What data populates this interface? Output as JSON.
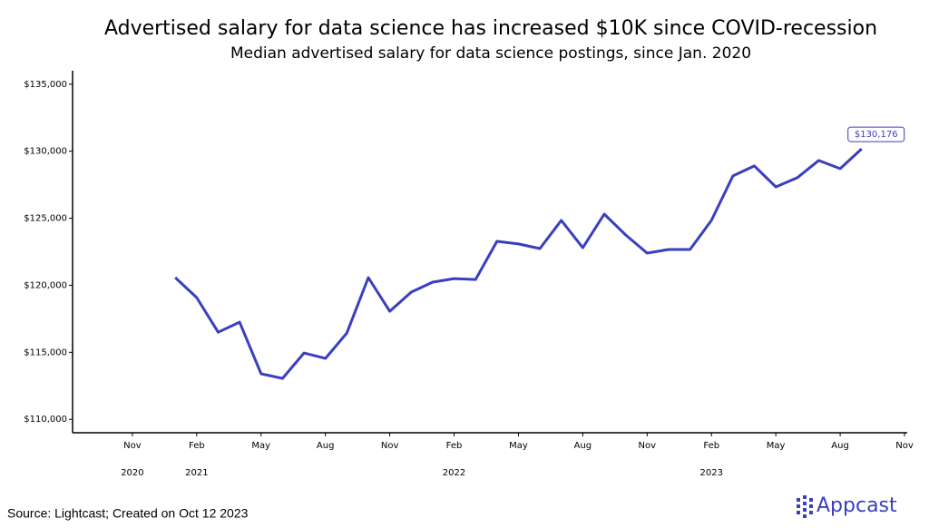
{
  "chart_data": {
    "type": "line",
    "title": "Advertised salary for data science has increased $10K since COVID-recession",
    "subtitle": "Median advertised salary for data science postings, since Jan. 2020",
    "source": "Source: Lightcast; Created on Oct 12 2023",
    "brand": "Appcast",
    "x": [
      "2021-01",
      "2021-02",
      "2021-03",
      "2021-04",
      "2021-05",
      "2021-06",
      "2021-07",
      "2021-08",
      "2021-09",
      "2021-10",
      "2021-11",
      "2021-12",
      "2022-01",
      "2022-02",
      "2022-03",
      "2022-04",
      "2022-05",
      "2022-06",
      "2022-07",
      "2022-08",
      "2022-09",
      "2022-10",
      "2022-11",
      "2022-12",
      "2023-01",
      "2023-02",
      "2023-03",
      "2023-04",
      "2023-05",
      "2023-06",
      "2023-07",
      "2023-08",
      "2023-09"
    ],
    "series": [
      {
        "color": "#3a3fbf",
        "values": [
          120570,
          119080,
          116500,
          117250,
          113400,
          113050,
          114950,
          114540,
          116440,
          120570,
          118060,
          119490,
          120230,
          120500,
          120430,
          123280,
          123080,
          122740,
          124840,
          122800,
          125310,
          123750,
          122400,
          122670,
          122670,
          124840,
          128160,
          128900,
          127340,
          128020,
          129310,
          128700,
          130176
        ],
        "value_labels": [
          null,
          null,
          null,
          null,
          null,
          null,
          null,
          null,
          null,
          null,
          null,
          null,
          null,
          null,
          null,
          null,
          null,
          null,
          null,
          null,
          null,
          null,
          null,
          null,
          null,
          null,
          null,
          null,
          null,
          null,
          null,
          null,
          "$130,176"
        ]
      }
    ],
    "xlim": [
      "2020-08",
      "2023-11"
    ],
    "xticks": [
      {
        "value": "2020-11",
        "label": "Nov"
      },
      {
        "value": "2021-02",
        "label": "Feb"
      },
      {
        "value": "2021-05",
        "label": "May"
      },
      {
        "value": "2021-08",
        "label": "Aug"
      },
      {
        "value": "2021-11",
        "label": "Nov"
      },
      {
        "value": "2022-02",
        "label": "Feb"
      },
      {
        "value": "2022-05",
        "label": "May"
      },
      {
        "value": "2022-08",
        "label": "Aug"
      },
      {
        "value": "2022-11",
        "label": "Nov"
      },
      {
        "value": "2023-02",
        "label": "Feb"
      },
      {
        "value": "2023-05",
        "label": "May"
      },
      {
        "value": "2023-08",
        "label": "Aug"
      },
      {
        "value": "2023-11",
        "label": "Nov"
      }
    ],
    "xticks_years": [
      {
        "value": "2020-11",
        "label": "2020"
      },
      {
        "value": "2021-02",
        "label": "2021"
      },
      {
        "value": "2022-02",
        "label": "2022"
      },
      {
        "value": "2023-02",
        "label": "2023"
      }
    ],
    "ylim": [
      109000,
      136000
    ],
    "yticks": [
      {
        "value": 110000,
        "label": "$110,000"
      },
      {
        "value": 115000,
        "label": "$115,000"
      },
      {
        "value": 120000,
        "label": "$120,000"
      },
      {
        "value": 125000,
        "label": "$125,000"
      },
      {
        "value": 130000,
        "label": "$130,000"
      },
      {
        "value": 135000,
        "label": "$135,000"
      }
    ],
    "grid": false
  }
}
